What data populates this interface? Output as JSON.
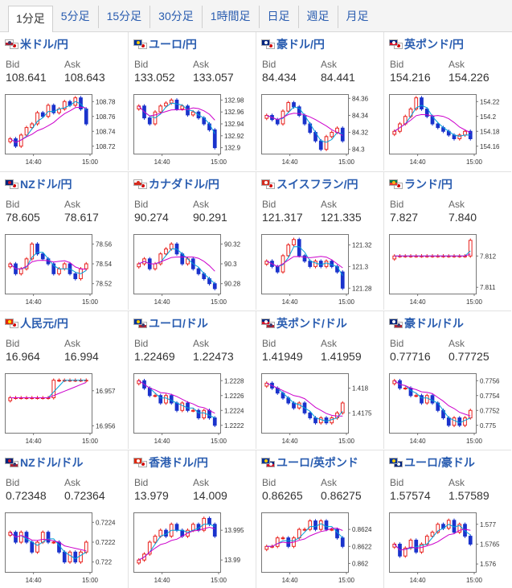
{
  "tabs": [
    {
      "label": "1分足",
      "active": true
    },
    {
      "label": "5分足"
    },
    {
      "label": "15分足"
    },
    {
      "label": "30分足"
    },
    {
      "label": "1時間足"
    },
    {
      "label": "日足"
    },
    {
      "label": "週足"
    },
    {
      "label": "月足"
    }
  ],
  "labels": {
    "bid": "Bid",
    "ask": "Ask"
  },
  "colors": {
    "up": "#e8201c",
    "down": "#1a33cc",
    "ma_short": "#00a0d8",
    "ma_long": "#cc00cc"
  },
  "pairs": [
    {
      "name": "米ドル/円",
      "flags": [
        "us",
        "jp"
      ],
      "bid": "108.641",
      "ask": "108.643"
    },
    {
      "name": "ユーロ/円",
      "flags": [
        "eu",
        "jp"
      ],
      "bid": "133.052",
      "ask": "133.057"
    },
    {
      "name": "豪ドル/円",
      "flags": [
        "au",
        "jp"
      ],
      "bid": "84.434",
      "ask": "84.441"
    },
    {
      "name": "英ポンド/円",
      "flags": [
        "gb",
        "jp"
      ],
      "bid": "154.216",
      "ask": "154.226"
    },
    {
      "name": "NZドル/円",
      "flags": [
        "nz",
        "jp"
      ],
      "bid": "78.605",
      "ask": "78.617"
    },
    {
      "name": "カナダドル/円",
      "flags": [
        "ca",
        "jp"
      ],
      "bid": "90.274",
      "ask": "90.291"
    },
    {
      "name": "スイスフラン/円",
      "flags": [
        "ch",
        "jp"
      ],
      "bid": "121.317",
      "ask": "121.335"
    },
    {
      "name": "ランド/円",
      "flags": [
        "za",
        "jp"
      ],
      "bid": "7.827",
      "ask": "7.840"
    },
    {
      "name": "人民元/円",
      "flags": [
        "cn",
        "jp"
      ],
      "bid": "16.964",
      "ask": "16.994"
    },
    {
      "name": "ユーロ/ドル",
      "flags": [
        "eu",
        "us"
      ],
      "bid": "1.22469",
      "ask": "1.22473"
    },
    {
      "name": "英ポンド/ドル",
      "flags": [
        "gb",
        "us"
      ],
      "bid": "1.41949",
      "ask": "1.41959"
    },
    {
      "name": "豪ドル/ドル",
      "flags": [
        "au",
        "us"
      ],
      "bid": "0.77716",
      "ask": "0.77725"
    },
    {
      "name": "NZドル/ドル",
      "flags": [
        "nz",
        "us"
      ],
      "bid": "0.72348",
      "ask": "0.72364"
    },
    {
      "name": "香港ドル/円",
      "flags": [
        "hk",
        "jp"
      ],
      "bid": "13.979",
      "ask": "14.009"
    },
    {
      "name": "ユーロ/英ポンド",
      "flags": [
        "eu",
        "gb"
      ],
      "bid": "0.86265",
      "ask": "0.86275"
    },
    {
      "name": "ユーロ/豪ドル",
      "flags": [
        "eu",
        "au"
      ],
      "bid": "1.57574",
      "ask": "1.57589"
    }
  ],
  "chart_data": [
    {
      "type": "candlestick",
      "pair": "米ドル/円",
      "x_ticks": [
        "14:40",
        "15:00"
      ],
      "y_ticks": [
        108.72,
        108.74,
        108.76,
        108.78
      ],
      "ylim": [
        108.71,
        108.79
      ],
      "close": [
        108.73,
        108.72,
        108.735,
        108.745,
        108.75,
        108.765,
        108.76,
        108.775,
        108.765,
        108.77,
        108.78,
        108.775,
        108.785,
        108.77,
        108.75
      ]
    },
    {
      "type": "candlestick",
      "pair": "ユーロ/円",
      "x_ticks": [
        "14:40",
        "15:00"
      ],
      "y_ticks": [
        132.9,
        132.92,
        132.94,
        132.96,
        132.98
      ],
      "ylim": [
        132.89,
        132.99
      ],
      "close": [
        132.97,
        132.95,
        132.94,
        132.96,
        132.97,
        132.975,
        132.98,
        132.965,
        132.97,
        132.955,
        132.96,
        132.95,
        132.94,
        132.93,
        132.9
      ]
    },
    {
      "type": "candlestick",
      "pair": "豪ドル/円",
      "x_ticks": [
        "14:40",
        "15:00"
      ],
      "y_ticks": [
        84.3,
        84.32,
        84.34,
        84.36
      ],
      "ylim": [
        84.295,
        84.365
      ],
      "close": [
        84.34,
        84.335,
        84.33,
        84.345,
        84.355,
        84.35,
        84.34,
        84.33,
        84.32,
        84.31,
        84.3,
        84.315,
        84.32,
        84.325,
        84.31
      ]
    },
    {
      "type": "candlestick",
      "pair": "英ポンド/円",
      "x_ticks": [
        "14:40",
        "15:00"
      ],
      "y_ticks": [
        154.16,
        154.18,
        154.2,
        154.22
      ],
      "ylim": [
        154.15,
        154.23
      ],
      "close": [
        154.18,
        154.19,
        154.2,
        154.21,
        154.225,
        154.21,
        154.2,
        154.19,
        154.185,
        154.18,
        154.175,
        154.17,
        154.175,
        154.18,
        154.17
      ]
    },
    {
      "type": "candlestick",
      "pair": "NZドル/円",
      "x_ticks": [
        "14:40",
        "15:00"
      ],
      "y_ticks": [
        78.52,
        78.54,
        78.56
      ],
      "ylim": [
        78.51,
        78.57
      ],
      "close": [
        78.54,
        78.53,
        78.535,
        78.545,
        78.56,
        78.55,
        78.545,
        78.54,
        78.53,
        78.535,
        78.54,
        78.53,
        78.525,
        78.535,
        78.54
      ]
    },
    {
      "type": "candlestick",
      "pair": "カナダドル/円",
      "x_ticks": [
        "14:40",
        "15:00"
      ],
      "y_ticks": [
        90.28,
        90.3,
        90.32
      ],
      "ylim": [
        90.27,
        90.33
      ],
      "close": [
        90.3,
        90.305,
        90.295,
        90.3,
        90.31,
        90.315,
        90.32,
        90.31,
        90.3,
        90.305,
        90.295,
        90.29,
        90.285,
        90.28,
        90.275
      ]
    },
    {
      "type": "candlestick",
      "pair": "スイスフラン/円",
      "x_ticks": [
        "14:40",
        "15:00"
      ],
      "y_ticks": [
        121.28,
        121.3,
        121.32
      ],
      "ylim": [
        121.275,
        121.33
      ],
      "close": [
        121.305,
        121.3,
        121.295,
        121.31,
        121.32,
        121.325,
        121.31,
        121.305,
        121.3,
        121.305,
        121.3,
        121.305,
        121.3,
        121.295,
        121.28
      ]
    },
    {
      "type": "candlestick",
      "pair": "ランド/円",
      "x_ticks": [
        "14:40",
        "15:00"
      ],
      "y_ticks": [
        7.811,
        7.812
      ],
      "ylim": [
        7.8108,
        7.8127
      ],
      "close": [
        7.812,
        7.812,
        7.812,
        7.812,
        7.812,
        7.812,
        7.812,
        7.812,
        7.812,
        7.812,
        7.812,
        7.812,
        7.812,
        7.812,
        7.8125
      ]
    },
    {
      "type": "candlestick",
      "pair": "人民元/円",
      "x_ticks": [
        "14:40",
        "15:00"
      ],
      "y_ticks": [
        16.956,
        16.957
      ],
      "ylim": [
        16.9558,
        16.9575
      ],
      "close": [
        16.9568,
        16.9568,
        16.9568,
        16.9568,
        16.9568,
        16.9568,
        16.9568,
        16.9568,
        16.9573,
        16.9573,
        16.9573,
        16.9573,
        16.9573,
        16.9573,
        16.9573
      ]
    },
    {
      "type": "candlestick",
      "pair": "ユーロ/ドル",
      "x_ticks": [
        "14:40",
        "15:00"
      ],
      "y_ticks": [
        1.2222,
        1.2224,
        1.2226,
        1.2228
      ],
      "ylim": [
        1.2221,
        1.2229
      ],
      "close": [
        1.2228,
        1.2227,
        1.2226,
        1.2226,
        1.2225,
        1.2226,
        1.2225,
        1.2224,
        1.2225,
        1.2224,
        1.2224,
        1.2223,
        1.2224,
        1.2223,
        1.2222
      ]
    },
    {
      "type": "candlestick",
      "pair": "英ポンド/ドル",
      "x_ticks": [
        "14:40",
        "15:00"
      ],
      "y_ticks": [
        1.4175,
        1.418
      ],
      "ylim": [
        1.4171,
        1.4183
      ],
      "close": [
        1.4181,
        1.418,
        1.4179,
        1.4178,
        1.4177,
        1.4176,
        1.4177,
        1.4175,
        1.4174,
        1.4173,
        1.4174,
        1.4173,
        1.4174,
        1.4175,
        1.4177
      ]
    },
    {
      "type": "candlestick",
      "pair": "豪ドル/ドル",
      "x_ticks": [
        "14:40",
        "15:00"
      ],
      "y_ticks": [
        0.775,
        0.7752,
        0.7754,
        0.7756
      ],
      "ylim": [
        0.7749,
        0.7757
      ],
      "close": [
        0.7756,
        0.7755,
        0.7755,
        0.7754,
        0.7754,
        0.7753,
        0.7754,
        0.7753,
        0.7752,
        0.7751,
        0.775,
        0.7751,
        0.775,
        0.7751,
        0.7752
      ]
    },
    {
      "type": "candlestick",
      "pair": "NZドル/ドル",
      "x_ticks": [
        "14:40",
        "15:00"
      ],
      "y_ticks": [
        0.722,
        0.7222,
        0.7224
      ],
      "ylim": [
        0.7219,
        0.7225
      ],
      "close": [
        0.7223,
        0.7222,
        0.7223,
        0.7222,
        0.7221,
        0.7222,
        0.7223,
        0.7222,
        0.7222,
        0.7221,
        0.722,
        0.7221,
        0.722,
        0.7221,
        0.7222
      ]
    },
    {
      "type": "candlestick",
      "pair": "香港ドル/円",
      "x_ticks": [
        "14:40",
        "15:00"
      ],
      "y_ticks": [
        13.99,
        13.995
      ],
      "ylim": [
        13.988,
        13.998
      ],
      "close": [
        13.99,
        13.991,
        13.993,
        13.994,
        13.995,
        13.994,
        13.996,
        13.995,
        13.994,
        13.995,
        13.996,
        13.995,
        13.997,
        13.996,
        13.994
      ]
    },
    {
      "type": "candlestick",
      "pair": "ユーロ/英ポンド",
      "x_ticks": [
        "14:40",
        "15:00"
      ],
      "y_ticks": [
        0.862,
        0.8622,
        0.8624
      ],
      "ylim": [
        0.8619,
        0.8626
      ],
      "close": [
        0.8622,
        0.8622,
        0.8623,
        0.8623,
        0.8622,
        0.8623,
        0.8624,
        0.8624,
        0.8625,
        0.8624,
        0.8625,
        0.8624,
        0.8624,
        0.8623,
        0.8622
      ]
    },
    {
      "type": "candlestick",
      "pair": "ユーロ/豪ドル",
      "x_ticks": [
        "14:40",
        "15:00"
      ],
      "y_ticks": [
        1.576,
        1.5765,
        1.577
      ],
      "ylim": [
        1.5758,
        1.5773
      ],
      "close": [
        1.5765,
        1.5762,
        1.5764,
        1.5766,
        1.5763,
        1.5765,
        1.5767,
        1.5768,
        1.577,
        1.5769,
        1.5771,
        1.5768,
        1.577,
        1.5767,
        1.5765
      ]
    }
  ]
}
